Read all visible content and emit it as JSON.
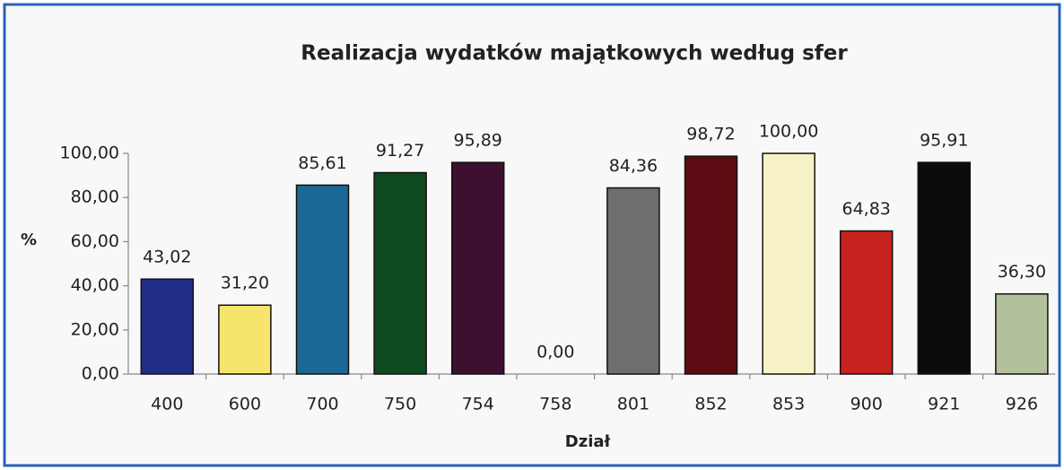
{
  "chart_data": {
    "type": "bar",
    "title": "Realizacja wydatków majątkowych według sfer",
    "x_label": "Dział",
    "y_label": "%",
    "categories": [
      "400",
      "600",
      "700",
      "750",
      "754",
      "758",
      "801",
      "852",
      "853",
      "900",
      "921",
      "926"
    ],
    "values": [
      43.02,
      31.2,
      85.61,
      91.27,
      95.89,
      0,
      84.36,
      98.72,
      100,
      64.83,
      95.91,
      36.3
    ],
    "value_labels": [
      "43,02",
      "31,20",
      "85,61",
      "91,27",
      "95,89",
      "0,00",
      "84,36",
      "98,72",
      "100,00",
      "64,83",
      "95,91",
      "36,30"
    ],
    "colors": [
      "#1f2d86",
      "#f6e46c",
      "#1b6896",
      "#0f4a20",
      "#3e1030",
      "#808080",
      "#6e6e6e",
      "#5c0c12",
      "#f8f3c6",
      "#c8221e",
      "#0c0c0c",
      "#b2c19c"
    ],
    "ylim": [
      0,
      100
    ],
    "yticks": [
      {
        "value": 0,
        "label": "0,00"
      },
      {
        "value": 20,
        "label": "20,00"
      },
      {
        "value": 40,
        "label": "40,00"
      },
      {
        "value": 60,
        "label": "60,00"
      },
      {
        "value": 80,
        "label": "80,00"
      },
      {
        "value": 100,
        "label": "100,00"
      }
    ]
  }
}
